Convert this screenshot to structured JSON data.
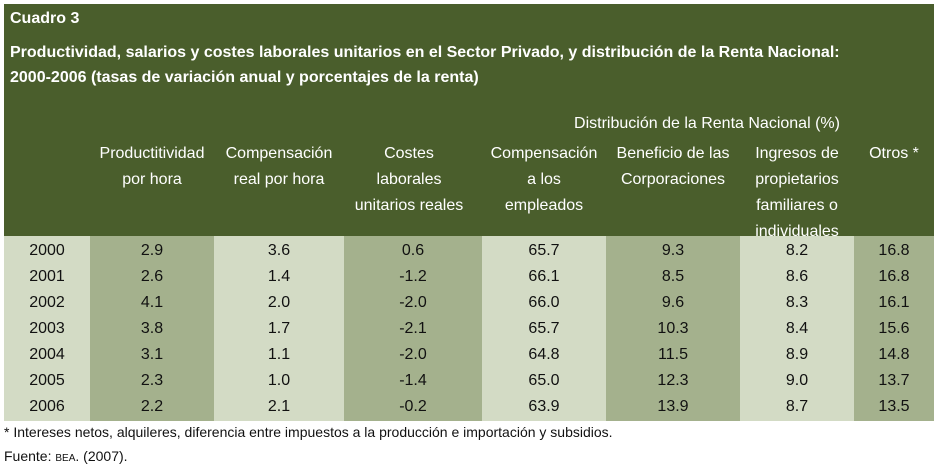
{
  "table": {
    "label": "Cuadro 3",
    "title_line1": "Productividad, salarios y costes laborales unitarios en el Sector Privado, y distribución de la Renta Nacional:",
    "title_line2": "2000-2006 (tasas de variación anual y porcentajes de la renta)",
    "group_header": "Distribución de la Renta Nacional (%)",
    "columns": [
      [
        "Productitividad",
        "por hora"
      ],
      [
        "Compensación",
        "real por hora"
      ],
      [
        "Costes",
        "laborales",
        "unitarios reales"
      ],
      [
        "Compensación",
        "a los",
        "empleados"
      ],
      [
        "Beneficio de las",
        "Corporaciones"
      ],
      [
        "Ingresos de",
        "propietarios",
        "familiares o",
        "individuales"
      ],
      [
        "Otros *"
      ]
    ],
    "rows": [
      {
        "year": "2000",
        "values": [
          "2.9",
          "3.6",
          "0.6",
          "65.7",
          "9.3",
          "8.2",
          "16.8"
        ]
      },
      {
        "year": "2001",
        "values": [
          "2.6",
          "1.4",
          "-1.2",
          "66.1",
          "8.5",
          "8.6",
          "16.8"
        ]
      },
      {
        "year": "2002",
        "values": [
          "4.1",
          "2.0",
          "-2.0",
          "66.0",
          "9.6",
          "8.3",
          "16.1"
        ]
      },
      {
        "year": "2003",
        "values": [
          "3.8",
          "1.7",
          "-2.1",
          "65.7",
          "10.3",
          "8.4",
          "15.6"
        ]
      },
      {
        "year": "2004",
        "values": [
          "3.1",
          "1.1",
          "-2.0",
          "64.8",
          "11.5",
          "8.9",
          "14.8"
        ]
      },
      {
        "year": "2005",
        "values": [
          "2.3",
          "1.0",
          "-1.4",
          "65.0",
          "12.3",
          "9.0",
          "13.7"
        ]
      },
      {
        "year": "2006",
        "values": [
          "2.2",
          "2.1",
          "-0.2",
          "63.9",
          "13.9",
          "8.7",
          "13.5"
        ]
      }
    ],
    "footnote": "* Intereses netos, alquileres, diferencia entre impuestos a la producción e importación y subsidios.",
    "source_prefix": "Fuente: ",
    "source_org": "BEA",
    "source_suffix": ". (2007)."
  }
}
